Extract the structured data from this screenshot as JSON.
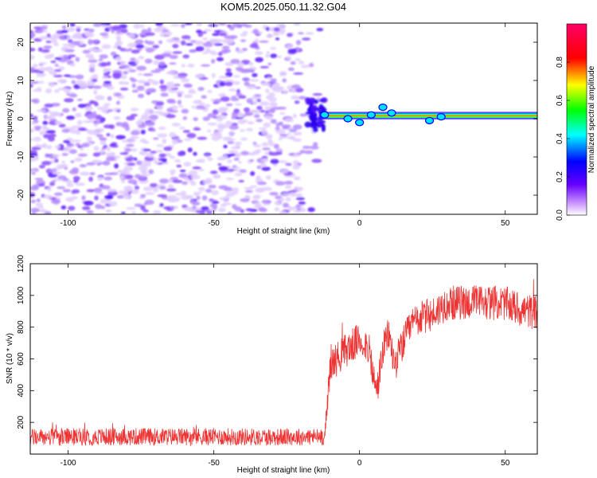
{
  "title": "KOM5.2025.050.11.32.G04",
  "chart_data": [
    {
      "type": "heatmap",
      "xlabel": "Height of straight line (km)",
      "ylabel": "Frequency (Hz)",
      "xlim": [
        -113,
        61
      ],
      "ylim": [
        -25,
        25
      ],
      "xticks": [
        -100,
        -50,
        0,
        50
      ],
      "yticks": [
        -20,
        -10,
        0,
        10,
        20
      ],
      "colorbar": {
        "label": "Normalized spectral amplitude",
        "range": [
          0,
          1
        ],
        "ticks": [
          "0.0",
          "0.2",
          "0.4",
          "0.6",
          "0.8"
        ],
        "colormap": [
          "#ffffff",
          "#cc99ff",
          "#6600ff",
          "#0000ff",
          "#00ffff",
          "#00ff00",
          "#ffff00",
          "#ff0000",
          "#ff0066"
        ]
      },
      "regions": [
        {
          "description_x": [
            -113,
            -14
          ],
          "frequency_range": [
            -25,
            25
          ],
          "amplitude": [
            0.0,
            0.2
          ],
          "pattern": "noise"
        },
        {
          "description_x": [
            -14,
            61
          ],
          "frequency_center": 0.8,
          "amplitude": [
            0.3,
            1.0
          ],
          "pattern": "narrow band"
        }
      ]
    },
    {
      "type": "line",
      "xlabel": "Height of straight line (km)",
      "ylabel": "SNR (10 * v/v)",
      "xlim": [
        -113,
        61
      ],
      "ylim": [
        0,
        1200
      ],
      "xticks": [
        -100,
        -50,
        0,
        50
      ],
      "yticks": [
        200,
        400,
        600,
        800,
        1000,
        1200
      ],
      "color": "#ee3333",
      "series_envelope": [
        {
          "x": -113,
          "y": 105
        },
        {
          "x": -100,
          "y": 108
        },
        {
          "x": -75,
          "y": 110
        },
        {
          "x": -50,
          "y": 110
        },
        {
          "x": -25,
          "y": 108
        },
        {
          "x": -12,
          "y": 110
        },
        {
          "x": -11,
          "y": 330
        },
        {
          "x": -10,
          "y": 560
        },
        {
          "x": -5,
          "y": 650
        },
        {
          "x": 0,
          "y": 720
        },
        {
          "x": 3,
          "y": 680
        },
        {
          "x": 5,
          "y": 460
        },
        {
          "x": 6,
          "y": 400
        },
        {
          "x": 8,
          "y": 650
        },
        {
          "x": 10,
          "y": 760
        },
        {
          "x": 12,
          "y": 560
        },
        {
          "x": 15,
          "y": 700
        },
        {
          "x": 18,
          "y": 820
        },
        {
          "x": 20,
          "y": 850
        },
        {
          "x": 25,
          "y": 880
        },
        {
          "x": 30,
          "y": 950
        },
        {
          "x": 40,
          "y": 960
        },
        {
          "x": 50,
          "y": 950
        },
        {
          "x": 55,
          "y": 910
        },
        {
          "x": 61,
          "y": 890
        }
      ]
    }
  ]
}
